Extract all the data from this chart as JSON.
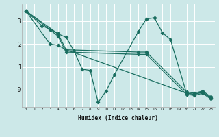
{
  "xlabel": "Humidex (Indice chaleur)",
  "bg_color": "#cce8e8",
  "line_color": "#1a6e60",
  "grid_color": "#ffffff",
  "xlim": [
    -0.5,
    23.5
  ],
  "ylim": [
    -0.75,
    3.75
  ],
  "yticks": [
    0,
    1,
    2,
    3
  ],
  "ytick_labels": [
    "-0",
    "1",
    "2",
    "3"
  ],
  "xticks": [
    0,
    1,
    2,
    3,
    4,
    5,
    6,
    7,
    8,
    9,
    10,
    11,
    12,
    13,
    14,
    15,
    16,
    17,
    18,
    19,
    20,
    21,
    22,
    23
  ],
  "lines": [
    {
      "x": [
        0,
        2,
        3,
        4,
        5,
        6,
        7,
        8,
        9,
        10,
        11,
        14,
        15,
        16,
        17,
        18,
        20,
        21,
        22,
        23
      ],
      "y": [
        3.45,
        2.8,
        2.65,
        2.45,
        2.3,
        1.7,
        0.9,
        0.85,
        -0.55,
        -0.05,
        0.65,
        2.55,
        3.1,
        3.15,
        2.5,
        2.2,
        -0.15,
        -0.2,
        -0.1,
        -0.35
      ]
    },
    {
      "x": [
        0,
        4,
        5,
        14,
        15,
        20,
        21,
        22,
        23
      ],
      "y": [
        3.45,
        2.45,
        1.75,
        1.65,
        1.65,
        -0.1,
        -0.15,
        -0.05,
        -0.3
      ]
    },
    {
      "x": [
        0,
        4,
        5,
        14,
        15,
        20,
        21,
        22,
        23
      ],
      "y": [
        3.45,
        2.35,
        1.65,
        1.55,
        1.55,
        -0.2,
        -0.25,
        -0.15,
        -0.4
      ]
    },
    {
      "x": [
        0,
        3,
        4,
        5,
        20,
        21,
        22,
        23
      ],
      "y": [
        3.45,
        2.0,
        1.95,
        1.75,
        -0.15,
        -0.2,
        -0.1,
        -0.35
      ]
    }
  ]
}
